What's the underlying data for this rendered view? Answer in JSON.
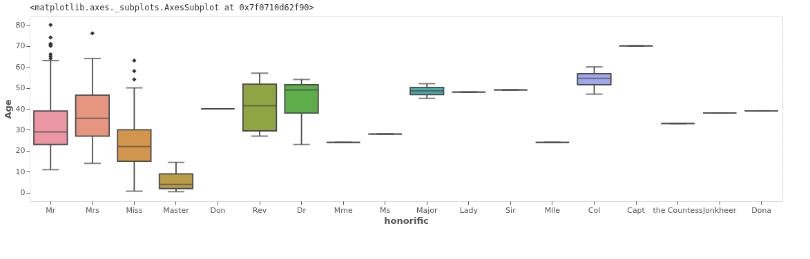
{
  "chart_data": {
    "type": "box",
    "annotations": [
      "<matplotlib.axes._subplots.AxesSubplot at 0x7f0710d62f90>"
    ],
    "xlabel": "honorific",
    "ylabel": "Age",
    "categories": [
      "Mr",
      "Mrs",
      "Miss",
      "Master",
      "Don",
      "Rev",
      "Dr",
      "Mme",
      "Ms",
      "Major",
      "Lady",
      "Sir",
      "Mlle",
      "Col",
      "Capt",
      "the Countess",
      "Jonkheer",
      "Dona"
    ],
    "colors": [
      "#ea96a3",
      "#e6957f",
      "#d1954c",
      "#b89c48",
      null,
      "#8fa544",
      "#5dae4a",
      null,
      null,
      "#4aa9a5",
      null,
      null,
      null,
      "#a2a6ec",
      null,
      null,
      null,
      null
    ],
    "boxes": [
      {
        "low": 11,
        "q1": 23,
        "median": 29,
        "q3": 39,
        "high": 63,
        "outliers": [
          64,
          65,
          66,
          70,
          70.5,
          71,
          74,
          80
        ]
      },
      {
        "low": 14,
        "q1": 27,
        "median": 35.5,
        "q3": 46.5,
        "high": 64,
        "outliers": [
          76
        ]
      },
      {
        "low": 0.75,
        "q1": 15,
        "median": 22,
        "q3": 30,
        "high": 50,
        "outliers": [
          54,
          58,
          63
        ]
      },
      {
        "low": 0.5,
        "q1": 2,
        "median": 4,
        "q3": 9,
        "high": 14.5
      },
      {
        "low": 40,
        "q1": 40,
        "median": 40,
        "q3": 40,
        "high": 40
      },
      {
        "low": 27,
        "q1": 29.5,
        "median": 41.5,
        "q3": 51.75,
        "high": 57
      },
      {
        "low": 23,
        "q1": 38,
        "median": 49,
        "q3": 51.5,
        "high": 54
      },
      {
        "low": 24,
        "q1": 24,
        "median": 24,
        "q3": 24,
        "high": 24
      },
      {
        "low": 28,
        "q1": 28,
        "median": 28,
        "q3": 28,
        "high": 28
      },
      {
        "low": 45,
        "q1": 46.75,
        "median": 48.5,
        "q3": 50.25,
        "high": 52
      },
      {
        "low": 48,
        "q1": 48,
        "median": 48,
        "q3": 48,
        "high": 48
      },
      {
        "low": 49,
        "q1": 49,
        "median": 49,
        "q3": 49,
        "high": 49
      },
      {
        "low": 24,
        "q1": 24,
        "median": 24,
        "q3": 24,
        "high": 24
      },
      {
        "low": 47,
        "q1": 51.5,
        "median": 54.5,
        "q3": 56.75,
        "high": 60
      },
      {
        "low": 70,
        "q1": 70,
        "median": 70,
        "q3": 70,
        "high": 70
      },
      {
        "low": 33,
        "q1": 33,
        "median": 33,
        "q3": 33,
        "high": 33
      },
      {
        "low": 38,
        "q1": 38,
        "median": 38,
        "q3": 38,
        "high": 38
      },
      {
        "low": 39,
        "q1": 39,
        "median": 39,
        "q3": 39,
        "high": 39
      }
    ],
    "ylim": [
      -4,
      84
    ],
    "yticks": [
      0,
      10,
      20,
      30,
      40,
      50,
      60,
      70,
      80
    ],
    "grid": "y",
    "marker": "diamond"
  }
}
